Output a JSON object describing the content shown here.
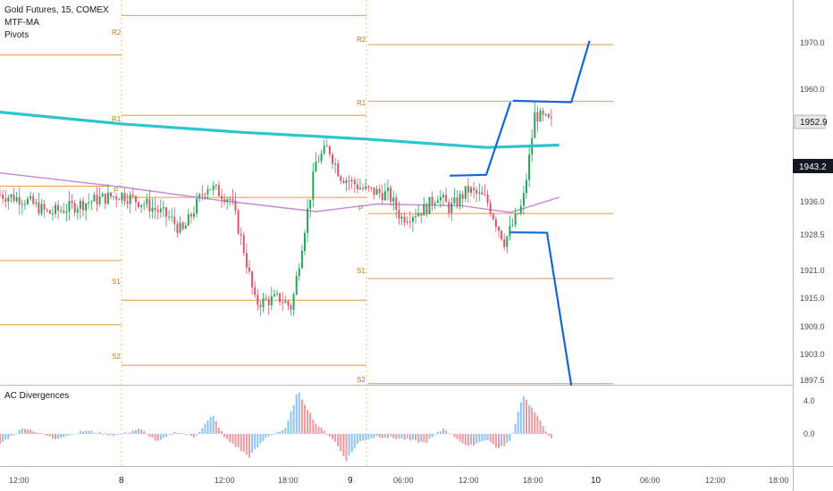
{
  "header": {
    "symbol_line": "Gold Futures, 15, COMEX",
    "indicator_1": "MTF-MA",
    "indicator_2": "Pivots"
  },
  "oscillator": {
    "title": "AC Divergences",
    "ticks": [
      "4.0",
      "0.0"
    ]
  },
  "price_badges": {
    "last": "1952.9",
    "cross": "1943.2"
  },
  "colors": {
    "up": "#26a65b",
    "down": "#e0546a",
    "pivot": "#e69a3c",
    "mtf_ma": "#2bc4cf",
    "ma2": "#c48ad6",
    "proj": "#1565d8",
    "osc_up": "#8fc3f0",
    "osc_down": "#f09aa0",
    "session": "#e8c766"
  },
  "chart_data": {
    "type": "candlestick",
    "title": "Gold Futures, 15, COMEX",
    "y_ticks": [
      "1970.0",
      "1960.0",
      "1952.9",
      "1943.2",
      "1936.0",
      "1928.5",
      "1921.0",
      "1915.0",
      "1909.0",
      "1903.0",
      "1897.5"
    ],
    "x_ticks": [
      "12:00",
      "8",
      "12:00",
      "18:00",
      "9",
      "06:00",
      "12:00",
      "18:00",
      "10",
      "06:00",
      "12:00",
      "18:00"
    ],
    "pivot_levels": {
      "day1": {
        "R2": 1976.0,
        "R1": 1954.8,
        "P": 1937.4,
        "S1": 1915.6,
        "S2": 1901.8
      },
      "day2": {
        "R2": 1969.8,
        "R1": 1957.8,
        "P": 1934.0,
        "S1": 1920.2,
        "S2": 1897.9
      },
      "previous_day_levels": [
        1967.6,
        1939.8,
        1924.0,
        1910.4
      ]
    },
    "mtf_ma": [
      [
        0,
        1955.5
      ],
      [
        1,
        1953.0
      ],
      [
        2,
        1951.2
      ],
      [
        3,
        1949.8
      ],
      [
        4,
        1948.0
      ],
      [
        4.6,
        1948.5
      ]
    ],
    "ma2": [
      [
        0,
        1942.6
      ],
      [
        1,
        1939.6
      ],
      [
        1.8,
        1936.8
      ],
      [
        2.6,
        1934.4
      ],
      [
        3.1,
        1936.0
      ],
      [
        3.8,
        1935.6
      ],
      [
        4.2,
        1934.2
      ],
      [
        4.6,
        1937.4
      ]
    ],
    "projection": [
      [
        [
          3.7,
          1942.0
        ],
        [
          4.0,
          1942.2
        ],
        [
          4.2,
          1957.6
        ]
      ],
      [
        [
          4.22,
          1957.9
        ],
        [
          4.7,
          1957.6
        ],
        [
          4.85,
          1970.6
        ]
      ],
      [
        [
          4.2,
          1930.0
        ],
        [
          4.5,
          1929.9
        ],
        [
          4.7,
          1897.5
        ]
      ]
    ],
    "last_price": 1952.9,
    "crosshair_price": 1943.2
  }
}
